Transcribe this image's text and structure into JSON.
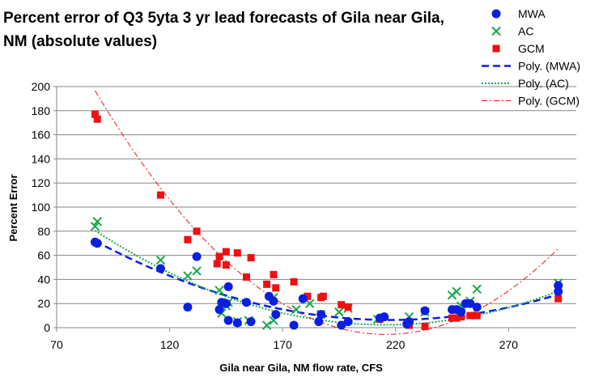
{
  "chart_data": {
    "type": "scatter",
    "title_lines": [
      "Percent error of Q3 5yta 3 yr lead forecasts of Gila near Gila,",
      "NM (absolute values)"
    ],
    "xlabel": "Gila near Gila, NM  flow rate, CFS",
    "ylabel": "Percent Error",
    "xlim": [
      70,
      300
    ],
    "ylim": [
      0,
      200
    ],
    "xticks": [
      70,
      120,
      170,
      220,
      270
    ],
    "yticks": [
      0,
      20,
      40,
      60,
      80,
      100,
      120,
      140,
      160,
      180,
      200
    ],
    "grid": "horizontal",
    "legend_position": "top-right",
    "series": [
      {
        "name": "MWA",
        "marker": "circle",
        "color": "#0b1fe0",
        "points": [
          [
            87,
            71
          ],
          [
            88,
            70
          ],
          [
            116,
            49
          ],
          [
            128,
            17
          ],
          [
            132,
            59
          ],
          [
            142,
            15
          ],
          [
            143,
            21
          ],
          [
            145,
            20
          ],
          [
            146,
            34
          ],
          [
            146,
            6
          ],
          [
            150,
            4
          ],
          [
            154,
            21
          ],
          [
            156,
            5
          ],
          [
            164,
            26
          ],
          [
            166,
            22
          ],
          [
            167,
            11
          ],
          [
            175,
            2
          ],
          [
            179,
            24
          ],
          [
            186,
            5
          ],
          [
            187,
            11
          ],
          [
            196,
            2
          ],
          [
            199,
            5
          ],
          [
            213,
            8
          ],
          [
            215,
            9
          ],
          [
            225,
            3
          ],
          [
            226,
            5
          ],
          [
            233,
            14
          ],
          [
            245,
            15
          ],
          [
            247,
            15
          ],
          [
            249,
            13
          ],
          [
            251,
            20
          ],
          [
            253,
            20
          ],
          [
            256,
            17
          ],
          [
            292,
            30
          ],
          [
            292,
            35
          ]
        ]
      },
      {
        "name": "AC",
        "marker": "x",
        "color": "#17a84a",
        "points": [
          [
            87,
            84
          ],
          [
            88,
            88
          ],
          [
            116,
            56
          ],
          [
            128,
            43
          ],
          [
            132,
            47
          ],
          [
            142,
            31
          ],
          [
            143,
            12
          ],
          [
            145,
            18
          ],
          [
            146,
            21
          ],
          [
            150,
            5
          ],
          [
            155,
            6
          ],
          [
            163,
            2
          ],
          [
            166,
            6
          ],
          [
            166,
            25
          ],
          [
            176,
            15
          ],
          [
            182,
            20
          ],
          [
            187,
            11
          ],
          [
            195,
            13
          ],
          [
            199,
            16
          ],
          [
            212,
            7
          ],
          [
            226,
            9
          ],
          [
            233,
            13
          ],
          [
            245,
            27
          ],
          [
            247,
            30
          ],
          [
            249,
            18
          ],
          [
            253,
            22
          ],
          [
            256,
            32
          ],
          [
            292,
            37
          ]
        ]
      },
      {
        "name": "GCM",
        "marker": "square",
        "color": "#ee1111",
        "points": [
          [
            87,
            177
          ],
          [
            88,
            173
          ],
          [
            116,
            110
          ],
          [
            128,
            73
          ],
          [
            132,
            80
          ],
          [
            141,
            53
          ],
          [
            142,
            59
          ],
          [
            145,
            63
          ],
          [
            145,
            52
          ],
          [
            150,
            62
          ],
          [
            154,
            42
          ],
          [
            156,
            58
          ],
          [
            163,
            36
          ],
          [
            166,
            44
          ],
          [
            167,
            33
          ],
          [
            175,
            38
          ],
          [
            181,
            26
          ],
          [
            187,
            25
          ],
          [
            188,
            26
          ],
          [
            196,
            19
          ],
          [
            199,
            17
          ],
          [
            213,
            7
          ],
          [
            226,
            2
          ],
          [
            233,
            1
          ],
          [
            245,
            8
          ],
          [
            247,
            8
          ],
          [
            249,
            9
          ],
          [
            253,
            10
          ],
          [
            256,
            10
          ],
          [
            292,
            24
          ]
        ]
      },
      {
        "name": "Poly. (MWA)",
        "type": "trendline",
        "style": "dashed",
        "color": "#0b1fe0",
        "degree": 2,
        "domain": [
          87,
          292
        ],
        "coefficients": [
          188.23,
          -1.67,
          0.003834
        ]
      },
      {
        "name": "Poly. (AC)",
        "type": "trendline",
        "style": "dotted",
        "color": "#17a84a",
        "degree": 2,
        "domain": [
          87,
          292
        ],
        "coefficients": [
          222.6,
          -2.046,
          0.004752
        ]
      },
      {
        "name": "Poly. (GCM)",
        "type": "trendline",
        "style": "dash-dot",
        "color": "#ee1111",
        "degree": 2,
        "domain": [
          87,
          292
        ],
        "coefficients": [
          562.6,
          -5.27,
          0.01222
        ]
      }
    ]
  }
}
